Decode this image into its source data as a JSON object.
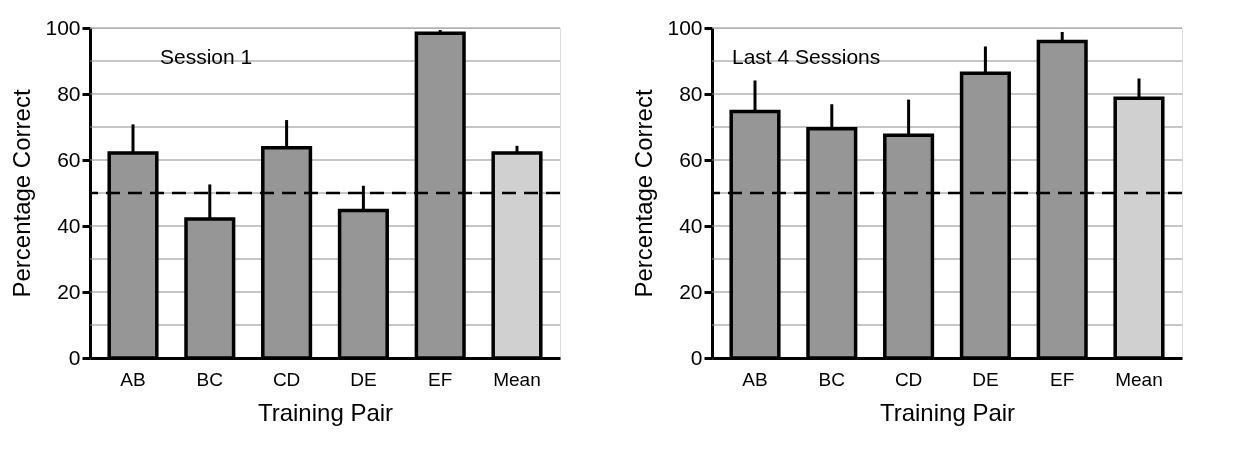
{
  "chart_data": [
    {
      "type": "bar",
      "annotations": [
        "Session 1"
      ],
      "xlabel": "Training Pair",
      "ylabel": "Percentage Correct",
      "categories": [
        "AB",
        "BC",
        "CD",
        "DE",
        "EF",
        "Mean"
      ],
      "values": [
        62.1,
        42.1,
        63.7,
        44.7,
        98.4,
        62.1
      ],
      "errors": [
        [
          62.1,
          70.8
        ],
        [
          42.1,
          52.6
        ],
        [
          63.7,
          72.1
        ],
        [
          44.7,
          52.2
        ],
        [
          98.4,
          99.4
        ],
        [
          62.1,
          64.3
        ]
      ],
      "colors": [
        "#969696",
        "#969696",
        "#969696",
        "#969696",
        "#969696",
        "#d0d0d0"
      ],
      "ylim": [
        0,
        100
      ],
      "yticks": [
        0,
        {
          "value": 10,
          "label": null
        },
        20,
        {
          "value": 30,
          "label": null
        },
        40,
        {
          "value": 50,
          "label": null
        },
        60,
        {
          "value": 70,
          "label": null
        },
        80,
        {
          "value": 90,
          "label": null
        },
        100
      ],
      "ref_lines": [
        {
          "axis": "y",
          "value": 50,
          "label": null,
          "color": "#000000",
          "line_style": "dashed"
        }
      ],
      "grid": "y"
    },
    {
      "type": "bar",
      "annotations": [
        "Last 4 Sessions"
      ],
      "xlabel": "Training Pair",
      "ylabel": "Percentage Correct",
      "categories": [
        "AB",
        "BC",
        "CD",
        "DE",
        "EF",
        "Mean"
      ],
      "values": [
        74.7,
        69.5,
        67.5,
        86.3,
        95.9,
        78.7
      ],
      "errors": [
        [
          74.7,
          84.1
        ],
        [
          69.5,
          76.9
        ],
        [
          67.5,
          78.3
        ],
        [
          86.3,
          94.4
        ],
        [
          95.9,
          98.8
        ],
        [
          78.7,
          84.7
        ]
      ],
      "colors": [
        "#969696",
        "#969696",
        "#969696",
        "#969696",
        "#969696",
        "#d0d0d0"
      ],
      "ylim": [
        0,
        100
      ],
      "yticks": [
        0,
        {
          "value": 10,
          "label": null
        },
        20,
        {
          "value": 30,
          "label": null
        },
        40,
        {
          "value": 50,
          "label": null
        },
        60,
        {
          "value": 70,
          "label": null
        },
        80,
        {
          "value": 90,
          "label": null
        },
        100
      ],
      "ref_lines": [
        {
          "axis": "y",
          "value": 50,
          "label": null,
          "color": "#000000",
          "line_style": "dashed"
        }
      ],
      "grid": "y"
    }
  ]
}
